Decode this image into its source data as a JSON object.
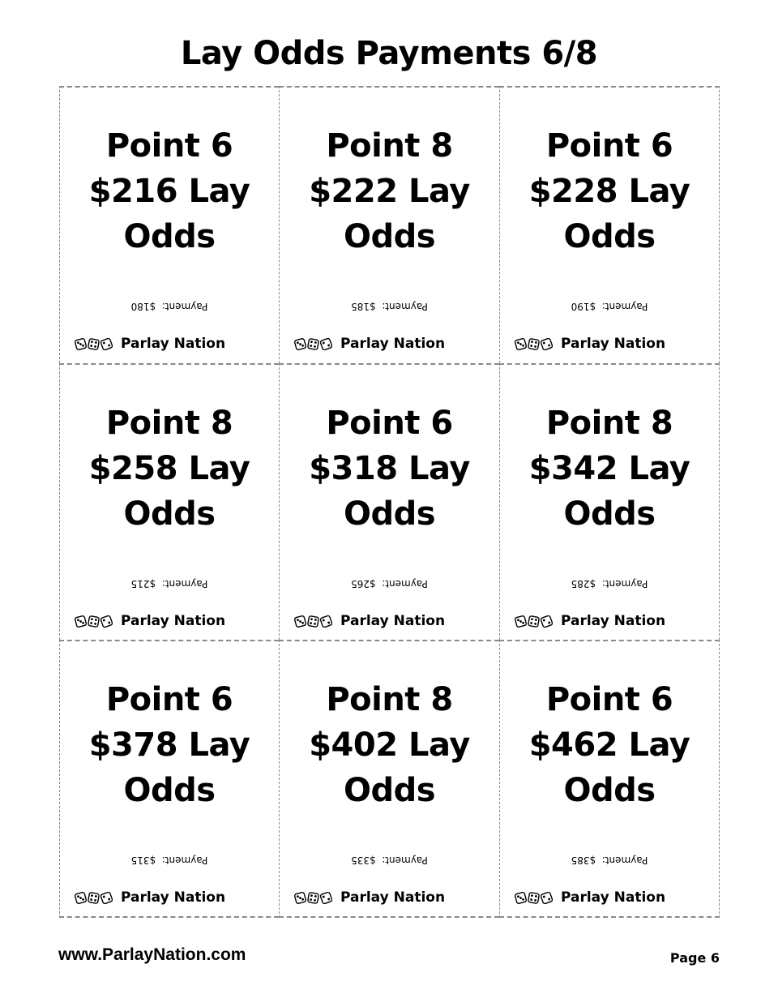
{
  "title": "Lay Odds Payments 6/8",
  "brand": {
    "name": "Parlay Nation",
    "icon": "dice-icon"
  },
  "cards": [
    {
      "point": "Point 6",
      "amount": "$216 Lay",
      "odds": "Odds",
      "payment": "Payment:  $180"
    },
    {
      "point": "Point 8",
      "amount": "$222 Lay",
      "odds": "Odds",
      "payment": "Payment:  $185"
    },
    {
      "point": "Point 6",
      "amount": "$228 Lay",
      "odds": "Odds",
      "payment": "Payment:  $190"
    },
    {
      "point": "Point 8",
      "amount": "$258 Lay",
      "odds": "Odds",
      "payment": "Payment:  $215"
    },
    {
      "point": "Point 6",
      "amount": "$318 Lay",
      "odds": "Odds",
      "payment": "Payment:  $265"
    },
    {
      "point": "Point 8",
      "amount": "$342 Lay",
      "odds": "Odds",
      "payment": "Payment:  $285"
    },
    {
      "point": "Point 6",
      "amount": "$378 Lay",
      "odds": "Odds",
      "payment": "Payment:  $315"
    },
    {
      "point": "Point 8",
      "amount": "$402 Lay",
      "odds": "Odds",
      "payment": "Payment:  $335"
    },
    {
      "point": "Point 6",
      "amount": "$462 Lay",
      "odds": "Odds",
      "payment": "Payment:  $385"
    }
  ],
  "footer": {
    "url": "www.ParlayNation.com",
    "page": "Page 6"
  }
}
